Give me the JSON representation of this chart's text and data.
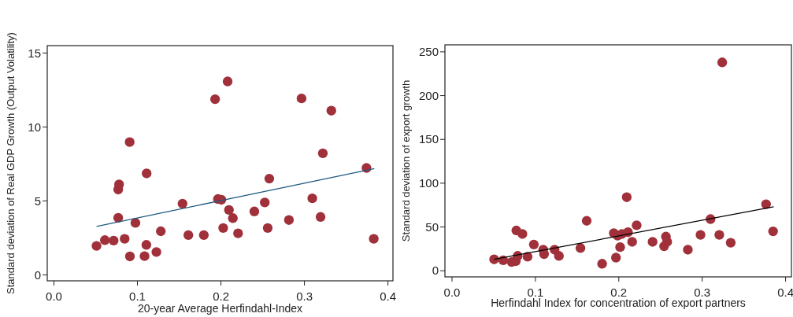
{
  "chart_data": [
    {
      "type": "scatter",
      "xlabel": "20-year Average Herfindahl-Index",
      "ylabel": "Standard deviation of Real GDP Growth (Output Volatility)",
      "xlim": [
        -0.008,
        0.406
      ],
      "ylim": [
        -0.4,
        15.5
      ],
      "xticks": [
        {
          "value": 0,
          "label": "0.0"
        },
        {
          "value": 0.1,
          "label": "0.1"
        },
        {
          "value": 0.2,
          "label": "0.2"
        },
        {
          "value": 0.3,
          "label": "0.3"
        },
        {
          "value": 0.4,
          "label": "0.4"
        }
      ],
      "yticks": [
        0,
        5,
        10,
        15
      ],
      "series": [
        {
          "marker": "circle",
          "color": "#a0303a",
          "x": [
            0.051,
            0.061,
            0.0715,
            0.0847,
            0.077,
            0.077,
            0.078,
            0.0907,
            0.091,
            0.0976,
            0.1085,
            0.1107,
            0.111,
            0.1227,
            0.128,
            0.154,
            0.161,
            0.1795,
            0.193,
            0.1964,
            0.2005,
            0.2027,
            0.208,
            0.2096,
            0.2143,
            0.2205,
            0.24,
            0.2525,
            0.256,
            0.2579,
            0.2814,
            0.2965,
            0.3094,
            0.3193,
            0.322,
            0.3322,
            0.3743,
            0.383
          ],
          "values": [
            1.96,
            2.35,
            2.32,
            2.44,
            3.86,
            5.77,
            6.12,
            8.98,
            1.25,
            3.52,
            1.27,
            2.03,
            6.86,
            1.55,
            2.95,
            4.82,
            2.69,
            2.69,
            11.88,
            5.13,
            5.08,
            3.17,
            13.08,
            4.39,
            3.84,
            2.81,
            4.29,
            4.9,
            3.17,
            6.51,
            3.71,
            11.93,
            5.18,
            3.92,
            8.22,
            11.1,
            7.23,
            2.44
          ]
        },
        {
          "type": "line",
          "color": "#1f5a80",
          "x": [
            0.051,
            0.3837
          ],
          "values": [
            3.27,
            7.19
          ]
        }
      ]
    },
    {
      "type": "scatter",
      "xlabel": "Herfindahl Index for concentration of export partners",
      "ylabel": "Standard deviation of export growth",
      "xlim": [
        -0.0085,
        0.407
      ],
      "ylim": [
        -7,
        258
      ],
      "xticks": [
        {
          "value": 0,
          "label": "0.0"
        },
        {
          "value": 0.1,
          "label": "0.1"
        },
        {
          "value": 0.2,
          "label": "0.2"
        },
        {
          "value": 0.3,
          "label": "0.3"
        },
        {
          "value": 0.4,
          "label": "0.4"
        }
      ],
      "yticks": [
        0,
        50,
        100,
        150,
        200,
        250
      ],
      "series": [
        {
          "marker": "circle",
          "color": "#a0303a",
          "x": [
            0.0505,
            0.0614,
            0.0715,
            0.0765,
            0.0787,
            0.0771,
            0.0844,
            0.0906,
            0.0981,
            0.1094,
            0.1104,
            0.123,
            0.1282,
            0.154,
            0.1615,
            0.18,
            0.1966,
            0.194,
            0.1985,
            0.2016,
            0.2038,
            0.211,
            0.2095,
            0.216,
            0.2214,
            0.2405,
            0.2543,
            0.2565,
            0.258,
            0.2828,
            0.298,
            0.31,
            0.3205,
            0.324,
            0.3342,
            0.3766,
            0.385
          ],
          "values": [
            13,
            12,
            10,
            11,
            17,
            46,
            42,
            16,
            30,
            24,
            19,
            24,
            17,
            26,
            57,
            8,
            15,
            43,
            40,
            27,
            42,
            44,
            84,
            33,
            52,
            33,
            28,
            39,
            33,
            24,
            41,
            59,
            41,
            238,
            32,
            76,
            45
          ]
        },
        {
          "type": "line",
          "color": "#000000",
          "x": [
            0.0505,
            0.3857
          ],
          "values": [
            13,
            73
          ]
        }
      ]
    }
  ]
}
